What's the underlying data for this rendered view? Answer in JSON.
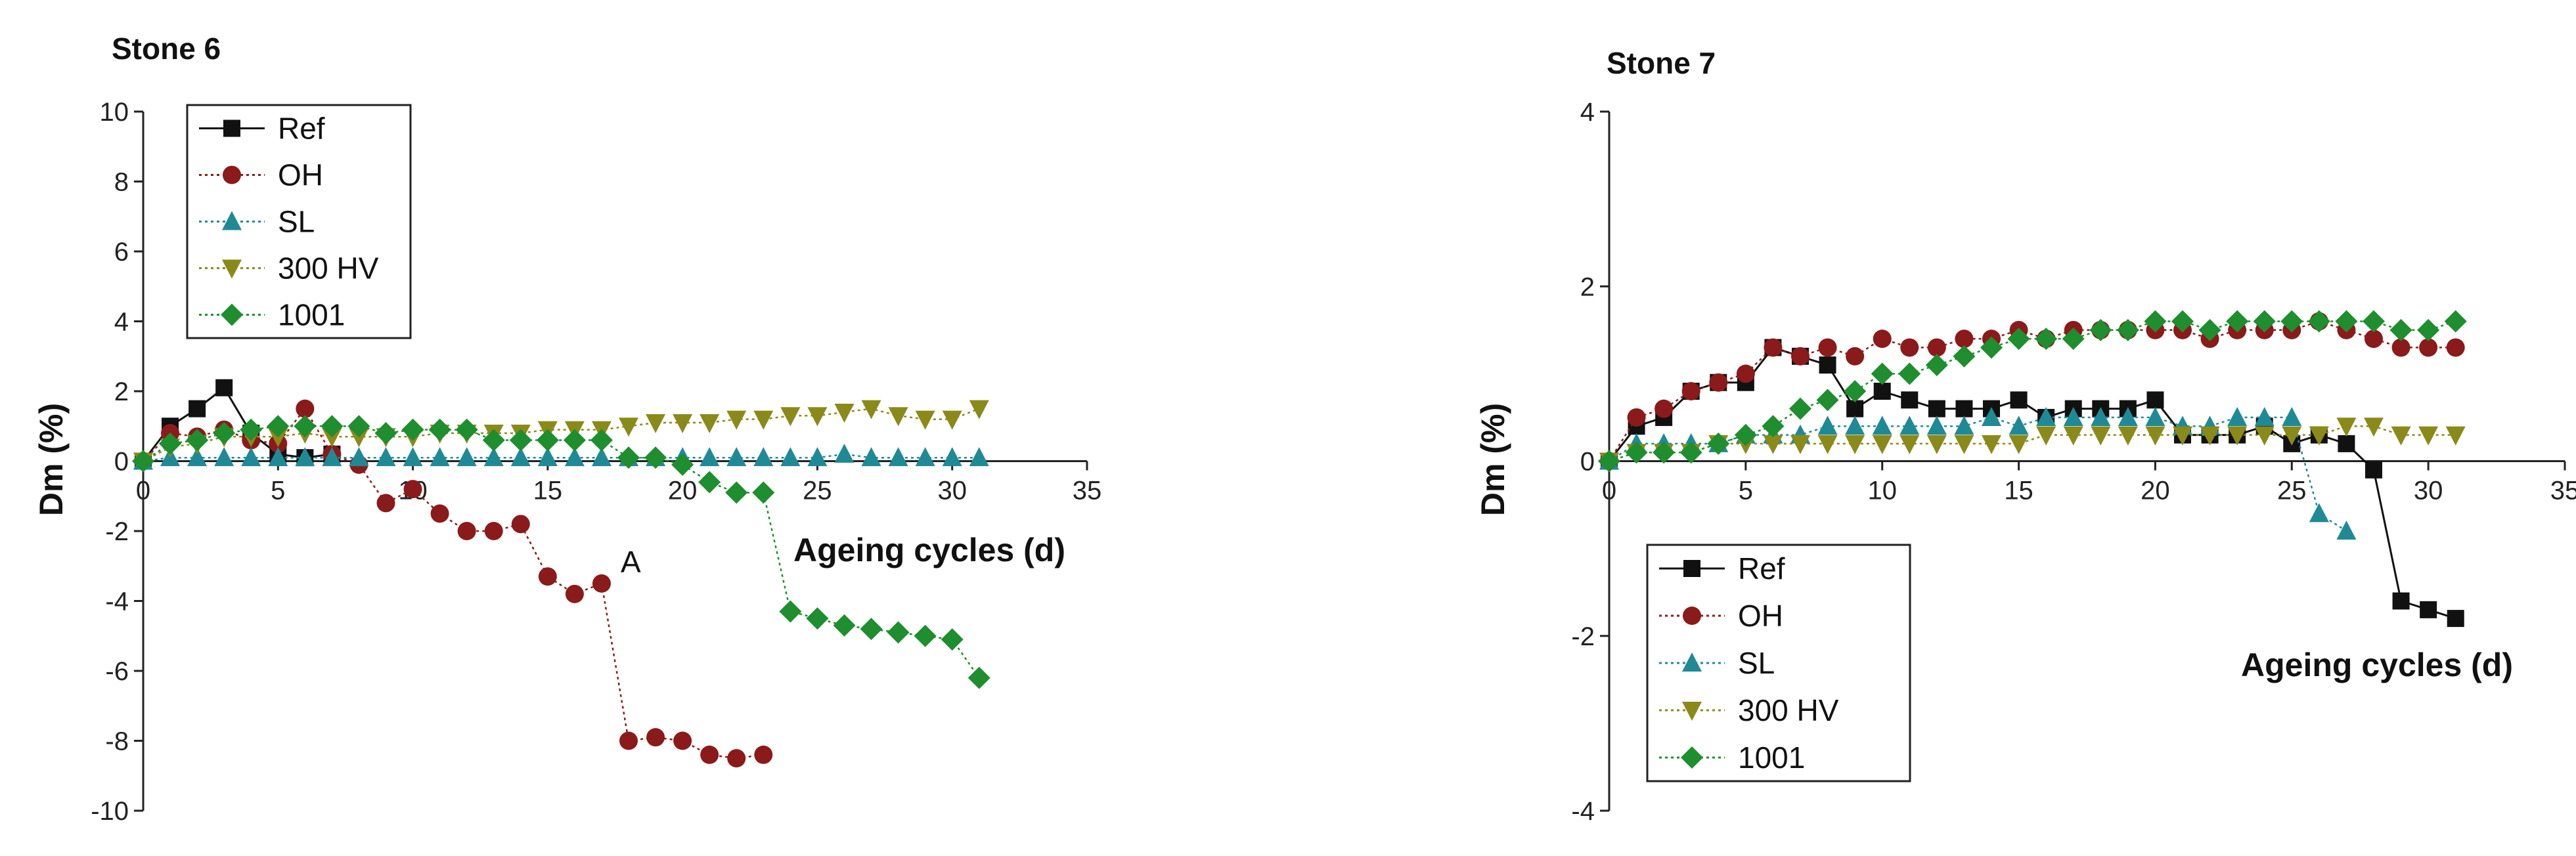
{
  "chart_data": [
    {
      "type": "line",
      "title": "Stone 6",
      "xlabel": "Ageing cycles (d)",
      "ylabel": "Dm (%)",
      "xlim": [
        0,
        35
      ],
      "ylim": [
        -10,
        10
      ],
      "xticks": [
        "0",
        "5",
        "10",
        "15",
        "20",
        "25",
        "30",
        "35"
      ],
      "yticks": [
        "10",
        "8",
        "6",
        "4",
        "2",
        "0",
        "-2",
        "-4",
        "-6",
        "-8",
        "-10"
      ],
      "legend_position": "top-left",
      "annotations": [
        {
          "text": "A",
          "x": 18,
          "y": -2.7
        }
      ],
      "series": [
        {
          "name": "Ref",
          "marker": "square",
          "color": "#111111",
          "line": "solid",
          "x": [
            0,
            1,
            2,
            3,
            4,
            5,
            6,
            7
          ],
          "y": [
            0,
            1.0,
            1.5,
            2.1,
            0.8,
            0.2,
            0.1,
            0.2
          ]
        },
        {
          "name": "OH",
          "marker": "circle",
          "color": "#8b1a1a",
          "line": "dotted",
          "x": [
            0,
            1,
            2,
            3,
            4,
            5,
            6,
            7,
            8,
            9,
            10,
            11,
            12,
            13,
            14,
            15,
            16,
            17,
            18,
            19,
            20,
            21,
            22,
            23
          ],
          "y": [
            0,
            0.8,
            0.7,
            0.9,
            0.6,
            0.5,
            1.5,
            0.2,
            -0.1,
            -1.2,
            -0.8,
            -1.5,
            -2.0,
            -2.0,
            -1.8,
            -3.3,
            -3.8,
            -3.5,
            -8.0,
            -7.9,
            -8.0,
            -8.4,
            -8.5,
            -8.4
          ]
        },
        {
          "name": "SL",
          "marker": "triangle-up",
          "color": "#1f8a96",
          "line": "dotted",
          "x": [
            0,
            1,
            2,
            3,
            4,
            5,
            6,
            7,
            8,
            9,
            10,
            11,
            12,
            13,
            14,
            15,
            16,
            17,
            18,
            19,
            20,
            21,
            22,
            23,
            24,
            25,
            26,
            27,
            28,
            29,
            30,
            31
          ],
          "y": [
            0,
            0.1,
            0.1,
            0.1,
            0.1,
            0.1,
            0.1,
            0.1,
            0.1,
            0.1,
            0.1,
            0.1,
            0.1,
            0.1,
            0.1,
            0.1,
            0.1,
            0.1,
            0.1,
            0.1,
            0.1,
            0.1,
            0.1,
            0.1,
            0.1,
            0.1,
            0.2,
            0.1,
            0.1,
            0.1,
            0.1,
            0.1
          ]
        },
        {
          "name": "300 HV",
          "marker": "triangle-down",
          "color": "#8a8a1a",
          "line": "dotted",
          "x": [
            0,
            1,
            2,
            3,
            4,
            5,
            6,
            7,
            8,
            9,
            10,
            11,
            12,
            13,
            14,
            15,
            16,
            17,
            18,
            19,
            20,
            21,
            22,
            23,
            24,
            25,
            26,
            27,
            28,
            29,
            30,
            31
          ],
          "y": [
            0,
            0.4,
            0.5,
            0.7,
            0.7,
            0.7,
            0.8,
            0.7,
            0.7,
            0.7,
            0.7,
            0.8,
            0.8,
            0.8,
            0.8,
            0.9,
            0.9,
            0.9,
            1.0,
            1.1,
            1.1,
            1.1,
            1.2,
            1.2,
            1.3,
            1.3,
            1.4,
            1.5,
            1.3,
            1.2,
            1.2,
            1.5
          ]
        },
        {
          "name": "1001",
          "marker": "diamond",
          "color": "#1e8e2e",
          "line": "dotted",
          "x": [
            0,
            1,
            2,
            3,
            4,
            5,
            6,
            7,
            8,
            9,
            10,
            11,
            12,
            13,
            14,
            15,
            16,
            17,
            18,
            19,
            20,
            21,
            22,
            23,
            24,
            25,
            26,
            27,
            28,
            29,
            30,
            31
          ],
          "y": [
            0,
            0.5,
            0.6,
            0.8,
            0.9,
            1.0,
            1.0,
            1.0,
            1.0,
            0.8,
            0.9,
            0.9,
            0.9,
            0.6,
            0.6,
            0.6,
            0.6,
            0.6,
            0.1,
            0.1,
            -0.1,
            -0.6,
            -0.9,
            -0.9,
            -4.3,
            -4.5,
            -4.7,
            -4.8,
            -4.9,
            -5.0,
            -5.1,
            -6.2
          ]
        }
      ]
    },
    {
      "type": "line",
      "title": "Stone 7",
      "xlabel": "Ageing cycles (d)",
      "ylabel": "Dm (%)",
      "xlim": [
        0,
        35
      ],
      "ylim": [
        -4,
        4
      ],
      "xticks": [
        "0",
        "5",
        "10",
        "15",
        "20",
        "25",
        "30",
        "35"
      ],
      "yticks": [
        "4",
        "2",
        "0",
        "-2",
        "-4"
      ],
      "legend_position": "bottom-left",
      "series": [
        {
          "name": "Ref",
          "marker": "square",
          "color": "#111111",
          "line": "solid",
          "x": [
            0,
            1,
            2,
            3,
            4,
            5,
            6,
            7,
            8,
            9,
            10,
            11,
            12,
            13,
            14,
            15,
            16,
            17,
            18,
            19,
            20,
            21,
            22,
            23,
            24,
            25,
            26,
            27,
            28,
            29,
            30,
            31
          ],
          "y": [
            0,
            0.4,
            0.5,
            0.8,
            0.9,
            0.9,
            1.3,
            1.2,
            1.1,
            0.6,
            0.8,
            0.7,
            0.6,
            0.6,
            0.6,
            0.7,
            0.5,
            0.6,
            0.6,
            0.6,
            0.7,
            0.3,
            0.3,
            0.3,
            0.4,
            0.2,
            0.3,
            0.2,
            -0.1,
            -1.6,
            -1.7,
            -1.8
          ]
        },
        {
          "name": "OH",
          "marker": "circle",
          "color": "#8b1a1a",
          "line": "dotted",
          "x": [
            0,
            1,
            2,
            3,
            4,
            5,
            6,
            7,
            8,
            9,
            10,
            11,
            12,
            13,
            14,
            15,
            16,
            17,
            18,
            19,
            20,
            21,
            22,
            23,
            24,
            25,
            26,
            27,
            28,
            29,
            30,
            31
          ],
          "y": [
            0,
            0.5,
            0.6,
            0.8,
            0.9,
            1.0,
            1.3,
            1.2,
            1.3,
            1.2,
            1.4,
            1.3,
            1.3,
            1.4,
            1.4,
            1.5,
            1.4,
            1.5,
            1.5,
            1.5,
            1.5,
            1.5,
            1.4,
            1.5,
            1.5,
            1.5,
            1.6,
            1.5,
            1.4,
            1.3,
            1.3,
            1.3
          ]
        },
        {
          "name": "SL",
          "marker": "triangle-up",
          "color": "#1f8a96",
          "line": "dotted",
          "x": [
            0,
            1,
            2,
            3,
            4,
            5,
            6,
            7,
            8,
            9,
            10,
            11,
            12,
            13,
            14,
            15,
            16,
            17,
            18,
            19,
            20,
            21,
            22,
            23,
            24,
            25,
            26,
            27
          ],
          "y": [
            0,
            0.2,
            0.2,
            0.2,
            0.2,
            0.3,
            0.3,
            0.3,
            0.4,
            0.4,
            0.4,
            0.4,
            0.4,
            0.4,
            0.5,
            0.4,
            0.5,
            0.5,
            0.5,
            0.5,
            0.5,
            0.4,
            0.4,
            0.5,
            0.5,
            0.5,
            -0.6,
            -0.8
          ]
        },
        {
          "name": "300 HV",
          "marker": "triangle-down",
          "color": "#8a8a1a",
          "line": "dotted",
          "x": [
            0,
            1,
            2,
            3,
            4,
            5,
            6,
            7,
            8,
            9,
            10,
            11,
            12,
            13,
            14,
            15,
            16,
            17,
            18,
            19,
            20,
            21,
            22,
            23,
            24,
            25,
            26,
            27,
            28,
            29,
            30,
            31
          ],
          "y": [
            0,
            0.1,
            0.1,
            0.1,
            0.2,
            0.2,
            0.2,
            0.2,
            0.2,
            0.2,
            0.2,
            0.2,
            0.2,
            0.2,
            0.2,
            0.2,
            0.3,
            0.3,
            0.3,
            0.3,
            0.3,
            0.3,
            0.3,
            0.3,
            0.3,
            0.3,
            0.3,
            0.4,
            0.4,
            0.3,
            0.3,
            0.3
          ]
        },
        {
          "name": "1001",
          "marker": "diamond",
          "color": "#1e8e2e",
          "line": "dotted",
          "x": [
            0,
            1,
            2,
            3,
            4,
            5,
            6,
            7,
            8,
            9,
            10,
            11,
            12,
            13,
            14,
            15,
            16,
            17,
            18,
            19,
            20,
            21,
            22,
            23,
            24,
            25,
            26,
            27,
            28,
            29,
            30,
            31
          ],
          "y": [
            0,
            0.1,
            0.1,
            0.1,
            0.2,
            0.3,
            0.4,
            0.6,
            0.7,
            0.8,
            1.0,
            1.0,
            1.1,
            1.2,
            1.3,
            1.4,
            1.4,
            1.4,
            1.5,
            1.5,
            1.6,
            1.6,
            1.5,
            1.6,
            1.6,
            1.6,
            1.6,
            1.6,
            1.6,
            1.5,
            1.5,
            1.6
          ]
        }
      ]
    }
  ]
}
